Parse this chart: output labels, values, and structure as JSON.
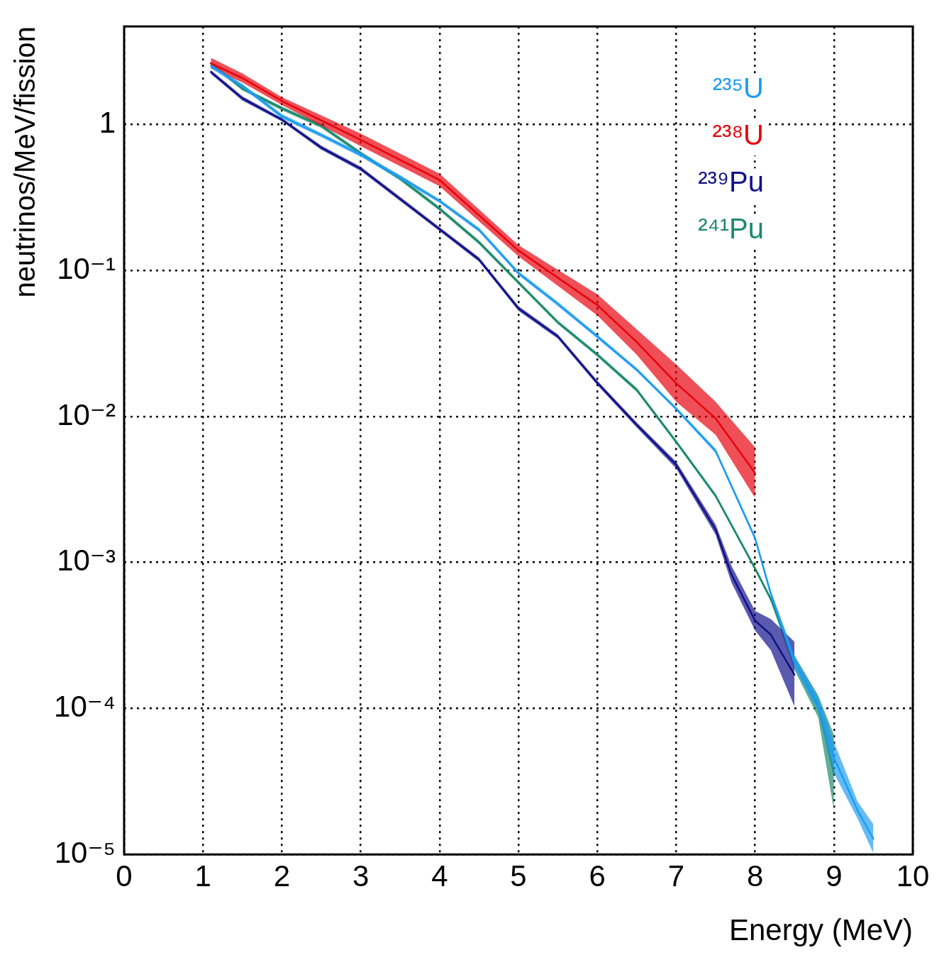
{
  "chart_data": {
    "type": "line",
    "xlabel": "Energy (MeV)",
    "ylabel": "neutrinos/MeV/fission",
    "log": "y",
    "grid": true,
    "legend": "top right",
    "xlim": [
      0,
      10
    ],
    "xticks": [
      0,
      1,
      2,
      3,
      4,
      5,
      6,
      7,
      8,
      9,
      10
    ],
    "ylim": [
      1e-05,
      4.7
    ],
    "yticks": [
      {
        "value": 1e-05,
        "label": "10⁻⁵"
      },
      {
        "value": 0.0001,
        "label": "10⁻⁴"
      },
      {
        "value": 0.001,
        "label": "10⁻³"
      },
      {
        "value": 0.01,
        "label": "10⁻²"
      },
      {
        "value": 0.1,
        "label": "10⁻¹"
      },
      {
        "value": 1,
        "label": "1"
      }
    ],
    "series": [
      {
        "name": "²³⁵U",
        "color": "#1e9cf0",
        "x": [
          1.1,
          1.5,
          2,
          2.5,
          3,
          3.5,
          4,
          4.5,
          5,
          5.5,
          6,
          6.5,
          7,
          7.5,
          8,
          8.2,
          8.5,
          8.8,
          9,
          9.3,
          9.5
        ],
        "values": [
          2.51,
          1.84,
          1.14,
          0.847,
          0.62,
          0.436,
          0.299,
          0.19,
          0.0957,
          0.059,
          0.0353,
          0.0209,
          0.0113,
          0.0058,
          0.00147,
          0.00061,
          0.00021,
          0.000107,
          4.6e-05,
          2e-05,
          1.28e-05
        ],
        "lower": [
          2.43,
          1.78,
          1.1,
          0.82,
          0.6,
          0.42,
          0.29,
          0.184,
          0.093,
          0.057,
          0.0342,
          0.0203,
          0.011,
          0.0056,
          0.00142,
          0.00058,
          0.00019,
          9.5e-05,
          3.6e-05,
          1.76e-05,
          1.02e-05
        ],
        "upper": [
          2.59,
          1.9,
          1.18,
          0.875,
          0.64,
          0.45,
          0.308,
          0.196,
          0.099,
          0.061,
          0.0364,
          0.0215,
          0.0116,
          0.006,
          0.00152,
          0.00064,
          0.00023,
          0.00012,
          5.9e-05,
          2.3e-05,
          1.61e-05
        ]
      },
      {
        "name": "²³⁸U",
        "color": "#e8000b",
        "x": [
          1.1,
          1.5,
          2,
          3,
          4,
          5,
          6,
          6.5,
          7,
          7.5,
          8
        ],
        "values": [
          2.63,
          2.08,
          1.45,
          0.785,
          0.417,
          0.137,
          0.058,
          0.0323,
          0.0169,
          0.0097,
          0.0041
        ],
        "lower": [
          2.42,
          1.94,
          1.36,
          0.71,
          0.378,
          0.125,
          0.0492,
          0.0265,
          0.0126,
          0.0075,
          0.00277
        ],
        "upper": [
          2.86,
          2.24,
          1.54,
          0.866,
          0.46,
          0.149,
          0.0687,
          0.0395,
          0.0227,
          0.0126,
          0.00614
        ]
      },
      {
        "name": "²³⁹Pu",
        "color": "#10108a",
        "x": [
          1.1,
          1.5,
          2,
          2.5,
          3,
          3.5,
          4,
          4.5,
          5,
          5.5,
          6,
          6.5,
          7,
          7.5,
          7.7,
          8,
          8.2,
          8.5
        ],
        "values": [
          2.29,
          1.51,
          1.08,
          0.694,
          0.498,
          0.309,
          0.192,
          0.119,
          0.055,
          0.0353,
          0.017,
          0.00875,
          0.00466,
          0.00168,
          0.00083,
          0.0004,
          0.00032,
          0.00017
        ],
        "lower": [
          2.22,
          1.46,
          1.05,
          0.672,
          0.482,
          0.299,
          0.186,
          0.115,
          0.053,
          0.0341,
          0.0164,
          0.0084,
          0.0044,
          0.00155,
          0.00073,
          0.000342,
          0.00025,
          0.000103
        ],
        "upper": [
          2.36,
          1.56,
          1.11,
          0.716,
          0.514,
          0.319,
          0.198,
          0.123,
          0.057,
          0.0365,
          0.0176,
          0.0091,
          0.0049,
          0.00182,
          0.00095,
          0.000466,
          0.00041,
          0.000286
        ]
      },
      {
        "name": "²⁴¹Pu",
        "color": "#1a8a6a",
        "x": [
          1.1,
          1.5,
          2,
          2.5,
          3,
          3.5,
          4,
          4.5,
          5,
          5.5,
          6,
          6.5,
          7,
          7.5,
          8,
          8.2,
          8.5,
          8.8,
          9
        ],
        "values": [
          2.62,
          1.76,
          1.29,
          0.978,
          0.635,
          0.426,
          0.265,
          0.156,
          0.0828,
          0.0441,
          0.0265,
          0.0152,
          0.0067,
          0.00286,
          0.00091,
          0.00056,
          0.00021,
          0.000104,
          3.6e-05
        ],
        "lower": [
          2.54,
          1.71,
          1.25,
          0.948,
          0.616,
          0.413,
          0.257,
          0.151,
          0.0803,
          0.0428,
          0.0257,
          0.0147,
          0.0065,
          0.00277,
          0.00088,
          0.00054,
          0.000184,
          8.7e-05,
          2e-05
        ],
        "upper": [
          2.7,
          1.81,
          1.33,
          1.01,
          0.654,
          0.439,
          0.273,
          0.161,
          0.0853,
          0.0454,
          0.0273,
          0.0157,
          0.0069,
          0.00295,
          0.00094,
          0.00058,
          0.00023,
          0.000123,
          6.6e-05
        ]
      }
    ]
  }
}
